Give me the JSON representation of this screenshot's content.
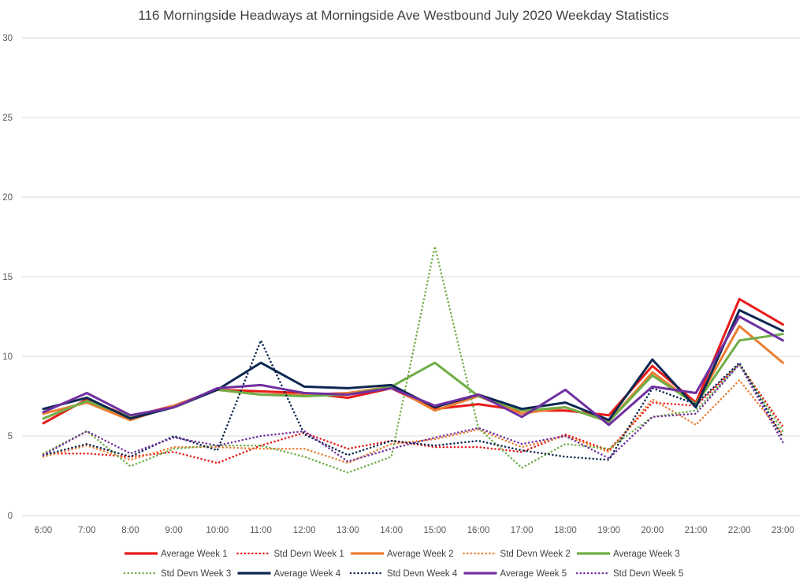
{
  "chart_data": {
    "type": "line",
    "title": "116 Morningside Headways at Morningside Ave Westbound July 2020 Weekday Statistics",
    "xlabel": "",
    "ylabel": "",
    "categories": [
      "6:00",
      "7:00",
      "8:00",
      "9:00",
      "10:00",
      "11:00",
      "12:00",
      "13:00",
      "14:00",
      "15:00",
      "16:00",
      "17:00",
      "18:00",
      "19:00",
      "20:00",
      "21:00",
      "22:00",
      "23:00"
    ],
    "ylim": [
      0,
      30
    ],
    "yticks": [
      0,
      5,
      10,
      15,
      20,
      25,
      30
    ],
    "grid": "horizontal",
    "legend_position": "bottom",
    "series": [
      {
        "name": "Average Week 1",
        "color": "#e81a1a",
        "style": "solid",
        "values": [
          5.8,
          7.3,
          6.2,
          6.9,
          7.9,
          7.8,
          7.7,
          7.4,
          8.0,
          6.7,
          7.0,
          6.6,
          6.6,
          6.3,
          9.4,
          7.1,
          13.6,
          12.0
        ]
      },
      {
        "name": "Std Devn Week 1",
        "color": "#e81a1a",
        "style": "dotted",
        "values": [
          3.9,
          3.9,
          3.7,
          4.0,
          3.3,
          4.4,
          5.2,
          4.2,
          4.7,
          4.3,
          4.3,
          4.0,
          5.1,
          4.1,
          7.1,
          6.9,
          9.5,
          5.6
        ]
      },
      {
        "name": "Average Week 2",
        "color": "#ed7d31",
        "style": "solid",
        "values": [
          6.4,
          7.1,
          6.0,
          6.9,
          7.9,
          7.6,
          7.6,
          7.7,
          8.1,
          6.6,
          7.5,
          6.4,
          6.8,
          5.9,
          9.0,
          7.0,
          11.9,
          9.6
        ]
      },
      {
        "name": "Std Devn Week 2",
        "color": "#ed7d31",
        "style": "dotted",
        "values": [
          3.7,
          4.4,
          3.5,
          4.3,
          4.3,
          4.2,
          4.2,
          3.3,
          4.5,
          4.8,
          5.4,
          4.3,
          5.0,
          4.0,
          7.3,
          5.7,
          8.5,
          5.1
        ]
      },
      {
        "name": "Average Week 3",
        "color": "#70ad47",
        "style": "solid",
        "values": [
          6.1,
          7.2,
          6.2,
          6.8,
          7.9,
          7.6,
          7.5,
          7.6,
          8.1,
          9.6,
          7.5,
          6.6,
          6.8,
          5.9,
          8.8,
          7.0,
          11.0,
          11.4
        ]
      },
      {
        "name": "Std Devn Week 3",
        "color": "#70ad47",
        "style": "dotted",
        "values": [
          3.9,
          5.3,
          3.1,
          4.2,
          4.4,
          4.4,
          3.7,
          2.7,
          3.7,
          16.9,
          5.5,
          3.0,
          4.5,
          4.2,
          6.2,
          6.6,
          9.5,
          5.3
        ]
      },
      {
        "name": "Average Week 4",
        "color": "#0d2752",
        "style": "solid",
        "values": [
          6.7,
          7.4,
          6.1,
          6.8,
          7.9,
          9.6,
          8.1,
          8.0,
          8.2,
          6.8,
          7.6,
          6.7,
          7.1,
          6.0,
          9.8,
          6.8,
          12.9,
          11.6
        ]
      },
      {
        "name": "Std Devn Week 4",
        "color": "#0d2752",
        "style": "dotted",
        "values": [
          3.8,
          4.5,
          3.7,
          5.0,
          4.1,
          11.0,
          5.1,
          3.8,
          4.7,
          4.4,
          4.7,
          4.1,
          3.7,
          3.5,
          8.0,
          7.0,
          9.6,
          4.9
        ]
      },
      {
        "name": "Average Week 5",
        "color": "#7030a0",
        "style": "solid",
        "values": [
          6.5,
          7.7,
          6.3,
          6.8,
          8.0,
          8.2,
          7.7,
          7.6,
          8.0,
          6.9,
          7.6,
          6.2,
          7.9,
          5.7,
          8.1,
          7.7,
          12.5,
          11.0
        ]
      },
      {
        "name": "Std Devn Week 5",
        "color": "#7030a0",
        "style": "dotted",
        "values": [
          3.8,
          5.3,
          3.9,
          4.9,
          4.4,
          5.0,
          5.3,
          3.4,
          4.2,
          4.9,
          5.5,
          4.5,
          5.0,
          3.6,
          6.2,
          6.4,
          9.5,
          4.6
        ]
      }
    ]
  }
}
